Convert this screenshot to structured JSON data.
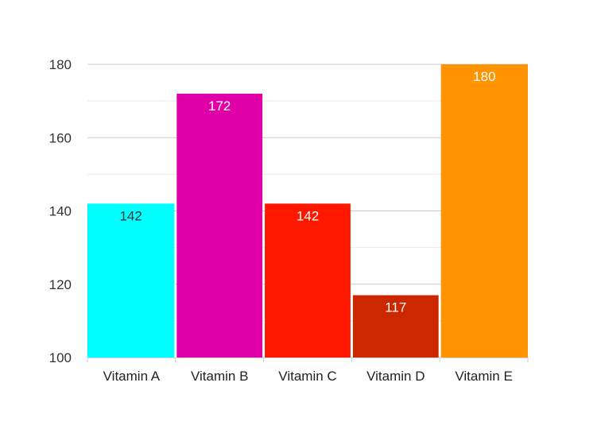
{
  "chart_data": {
    "type": "bar",
    "categories": [
      "Vitamin A",
      "Vitamin B",
      "Vitamin C",
      "Vitamin D",
      "Vitamin E"
    ],
    "values": [
      142,
      172,
      142,
      117,
      180
    ],
    "colors": [
      "#00ffff",
      "#e000a8",
      "#ff1800",
      "#cc2800",
      "#ff9400"
    ],
    "label_colors": [
      "#333333",
      "#ffffff",
      "#ffffff",
      "#ffffff",
      "#ffffff"
    ],
    "ylim": [
      100,
      180
    ],
    "y_ticks": [
      100,
      120,
      140,
      160,
      180
    ],
    "y_tick_labels": [
      "100",
      "120",
      "140",
      "160",
      "180"
    ],
    "grid": true,
    "minor_grid": true,
    "legend": "none"
  }
}
